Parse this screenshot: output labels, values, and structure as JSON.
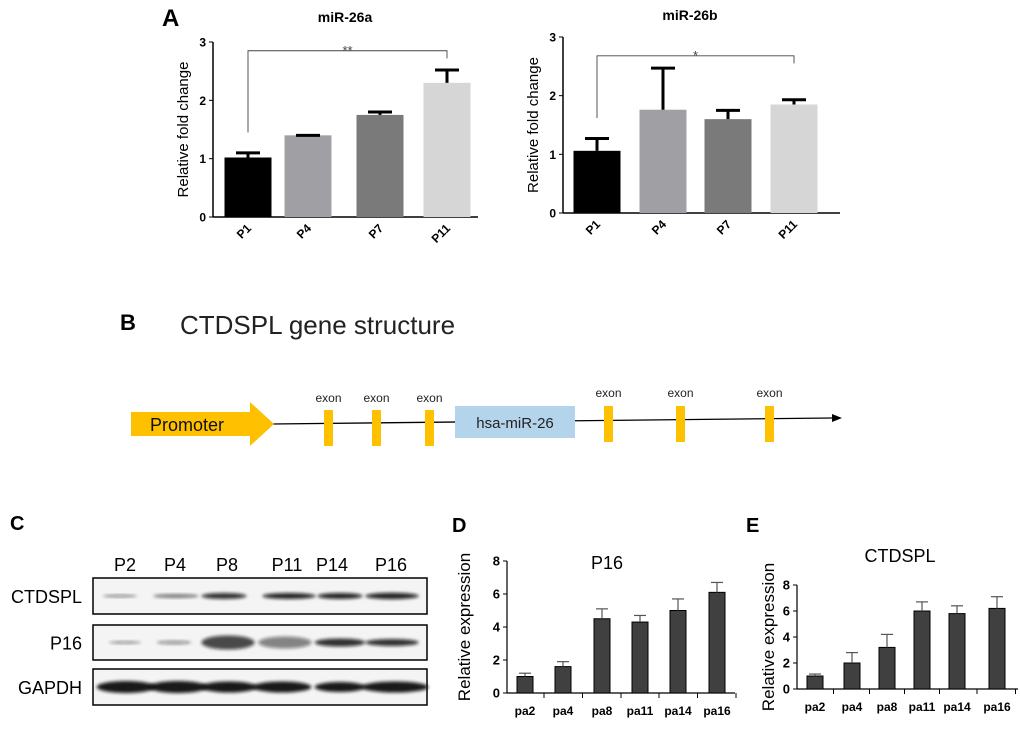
{
  "panel_labels": {
    "a": "A",
    "b": "B",
    "c": "C",
    "d": "D",
    "e": "E"
  },
  "chart_data": [
    {
      "id": "a1",
      "type": "bar",
      "title": "miR-26a",
      "xlabel": "",
      "ylabel": "Relative fold change",
      "categories": [
        "P1",
        "P4",
        "P7",
        "P11"
      ],
      "values": [
        1.02,
        1.4,
        1.75,
        2.3
      ],
      "error_upper": [
        1.1,
        1.4,
        1.8,
        2.52
      ],
      "colors": [
        "#000000",
        "#a0a0a4",
        "#7a7a7a",
        "#d6d6d6"
      ],
      "ylim": [
        0,
        3
      ],
      "yticks": [
        "0",
        "1",
        "2",
        "3"
      ],
      "significance": {
        "from": "P1",
        "to": "P11",
        "label": "**",
        "level": 2.85
      },
      "tick_labels_rotated": true,
      "grid": false
    },
    {
      "id": "a2",
      "type": "bar",
      "title": "miR-26b",
      "xlabel": "",
      "ylabel": "Relative fold change",
      "categories": [
        "P1",
        "P4",
        "P7",
        "P11"
      ],
      "values": [
        1.06,
        1.76,
        1.6,
        1.85
      ],
      "error_upper": [
        1.27,
        2.47,
        1.75,
        1.93
      ],
      "colors": [
        "#000000",
        "#a0a0a4",
        "#7a7a7a",
        "#d6d6d6"
      ],
      "ylim": [
        0,
        3
      ],
      "yticks": [
        "0",
        "1",
        "2",
        "3"
      ],
      "significance": {
        "from": "P1",
        "to": "P11",
        "label": "*",
        "level": 2.68
      },
      "tick_labels_rotated": true,
      "grid": false
    },
    {
      "id": "d",
      "type": "bar",
      "title": "P16",
      "xlabel": "",
      "ylabel": "Relative expression",
      "categories": [
        "pa2",
        "pa4",
        "pa8",
        "pa11",
        "pa14",
        "pa16"
      ],
      "values": [
        1.0,
        1.6,
        4.5,
        4.3,
        5.0,
        6.1
      ],
      "error_upper": [
        1.2,
        1.9,
        5.1,
        4.7,
        5.7,
        6.7
      ],
      "colors": [
        "#404040"
      ],
      "ylim": [
        0,
        8
      ],
      "yticks": [
        "0",
        "2",
        "4",
        "6",
        "8"
      ],
      "tick_labels_rotated": false,
      "grid": false
    },
    {
      "id": "e",
      "type": "bar",
      "title": "CTDSPL",
      "xlabel": "",
      "ylabel": "Relative expression",
      "categories": [
        "pa2",
        "pa4",
        "pa8",
        "pa11",
        "pa14",
        "pa16"
      ],
      "values": [
        1.0,
        2.0,
        3.2,
        6.0,
        5.8,
        6.2
      ],
      "error_upper": [
        1.15,
        2.8,
        4.2,
        6.7,
        6.4,
        7.1
      ],
      "colors": [
        "#404040"
      ],
      "ylim": [
        0,
        8
      ],
      "yticks": [
        "0",
        "2",
        "4",
        "6",
        "8"
      ],
      "tick_labels_rotated": false,
      "grid": false
    }
  ],
  "gene_structure": {
    "title": "CTDSPL gene structure",
    "promoter": "Promoter",
    "mirna": "hsa-miR-26",
    "exons": [
      "exon",
      "exon",
      "exon",
      "exon",
      "exon",
      "exon"
    ],
    "colors": {
      "promoter": "#ffc000",
      "exon": "#ffc000",
      "mirna": "#b4d4ec"
    }
  },
  "western_blot": {
    "lanes": [
      "P2",
      "P4",
      "P8",
      "P11",
      "P14",
      "P16"
    ],
    "rows": [
      "CTDSPL",
      "P16",
      "GAPDH"
    ]
  }
}
